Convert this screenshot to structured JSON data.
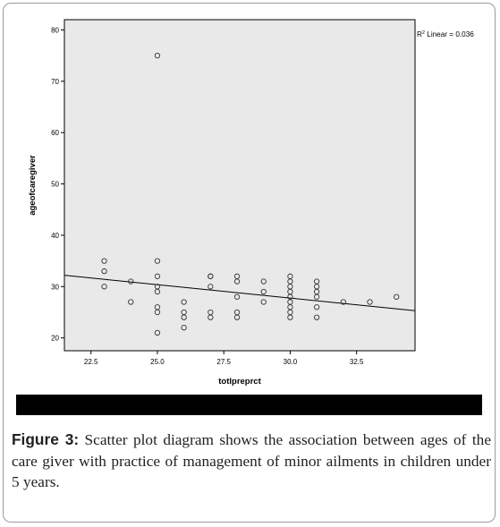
{
  "figure": {
    "label": "Figure 3:",
    "caption": " Scatter plot diagram shows the association between ages of the care giver with practice of management of minor ailments in children under 5 years."
  },
  "chart_data": {
    "type": "scatter",
    "xlabel": "totlpreprct",
    "ylabel": "ageofcaregiver",
    "xlim": [
      21.5,
      34.7
    ],
    "ylim": [
      17.5,
      82.0
    ],
    "x_ticks": [
      "22.5",
      "25.0",
      "27.5",
      "30.0",
      "32.5"
    ],
    "y_ticks": [
      "20",
      "30",
      "40",
      "50",
      "60",
      "70",
      "80"
    ],
    "grid": false,
    "legend_annotation": {
      "prefix": "R",
      "superscript": "2",
      "text": " Linear = 0.036"
    },
    "points": [
      [
        23,
        35
      ],
      [
        23,
        33
      ],
      [
        23,
        30
      ],
      [
        24,
        31
      ],
      [
        24,
        27
      ],
      [
        25,
        75
      ],
      [
        25,
        35
      ],
      [
        25,
        32
      ],
      [
        25,
        30
      ],
      [
        25,
        29
      ],
      [
        25,
        26
      ],
      [
        25,
        25
      ],
      [
        25,
        21
      ],
      [
        26,
        27
      ],
      [
        26,
        25
      ],
      [
        26,
        24
      ],
      [
        26,
        22
      ],
      [
        27,
        32
      ],
      [
        27,
        32
      ],
      [
        27,
        30
      ],
      [
        27,
        25
      ],
      [
        27,
        24
      ],
      [
        28,
        32
      ],
      [
        28,
        31
      ],
      [
        28,
        28
      ],
      [
        28,
        25
      ],
      [
        28,
        24
      ],
      [
        29,
        31
      ],
      [
        29,
        29
      ],
      [
        29,
        27
      ],
      [
        30,
        32
      ],
      [
        30,
        31
      ],
      [
        30,
        30
      ],
      [
        30,
        29
      ],
      [
        30,
        28
      ],
      [
        30,
        27
      ],
      [
        30,
        26
      ],
      [
        30,
        25
      ],
      [
        30,
        24
      ],
      [
        31,
        31
      ],
      [
        31,
        30
      ],
      [
        31,
        29
      ],
      [
        31,
        28
      ],
      [
        31,
        26
      ],
      [
        31,
        24
      ],
      [
        32,
        27
      ],
      [
        33,
        27
      ],
      [
        34,
        28
      ]
    ],
    "fit_line": {
      "x": [
        21.5,
        34.7
      ],
      "y": [
        32.2,
        25.3
      ]
    },
    "colors": {
      "plot_background": "#e9e9e9",
      "marker": "#333333",
      "fit_line": "#000000"
    }
  }
}
